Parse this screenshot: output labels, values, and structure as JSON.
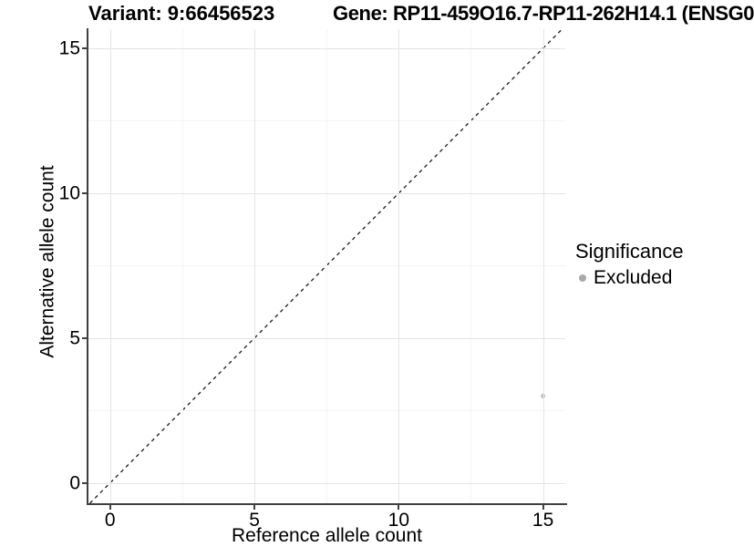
{
  "titles": {
    "variant": "Variant: 9:66456523",
    "gene": "Gene: RP11-459O16.7-RP11-262H14.1 (ENSG0"
  },
  "axes": {
    "x": {
      "label": "Reference allele count",
      "tick_labels": [
        "0",
        "5",
        "10",
        "15"
      ]
    },
    "y": {
      "label": "Alternative allele count",
      "tick_labels": [
        "0",
        "5",
        "10",
        "15"
      ]
    }
  },
  "legend": {
    "title": "Significance",
    "items": [
      {
        "label": "Excluded",
        "color": "#a8a8a8"
      }
    ]
  },
  "colors": {
    "grid_major": "#e4e4e4",
    "grid_minor": "#f4f4f4",
    "axis_line": "#404040",
    "reference_line": "#1a1a1a",
    "point": "#c4c4c4"
  },
  "chart_data": {
    "type": "scatter",
    "title_left": "Variant: 9:66456523",
    "title_right": "Gene: RP11-459O16.7-RP11-262H14.1 (ENSG0",
    "xlabel": "Reference allele count",
    "ylabel": "Alternative allele count",
    "xlim": [
      -0.75,
      15.77
    ],
    "ylim": [
      -0.7,
      15.66
    ],
    "x_ticks": [
      0,
      5,
      10,
      15
    ],
    "y_ticks": [
      0,
      5,
      10,
      15
    ],
    "grid": "major+minor",
    "legend_position": "right",
    "series": [
      {
        "name": "Excluded",
        "color": "#c4c4c4",
        "points": [
          {
            "x": 15,
            "y": 3
          }
        ]
      }
    ],
    "reference_line": {
      "type": "identity",
      "style": "dashed",
      "color": "#1a1a1a"
    }
  }
}
